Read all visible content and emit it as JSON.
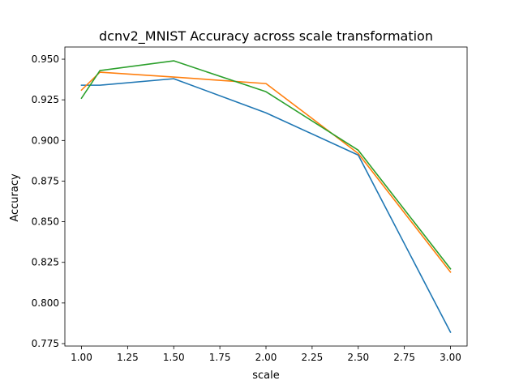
{
  "chart_data": {
    "type": "line",
    "title": "dcnv2_MNIST Accuracy across scale transformation",
    "xlabel": "scale",
    "ylabel": "Accuracy",
    "xlim": [
      0.91,
      3.09
    ],
    "ylim": [
      0.7735,
      0.9575
    ],
    "xticks": [
      1.0,
      1.25,
      1.5,
      1.75,
      2.0,
      2.25,
      2.5,
      2.75,
      3.0
    ],
    "xtick_labels": [
      "1.00",
      "1.25",
      "1.50",
      "1.75",
      "2.00",
      "2.25",
      "2.50",
      "2.75",
      "3.00"
    ],
    "yticks": [
      0.775,
      0.8,
      0.825,
      0.85,
      0.875,
      0.9,
      0.925,
      0.95
    ],
    "ytick_labels": [
      "0.775",
      "0.800",
      "0.825",
      "0.850",
      "0.875",
      "0.900",
      "0.925",
      "0.950"
    ],
    "grid": false,
    "legend": false,
    "x": [
      1.0,
      1.1,
      1.5,
      2.0,
      2.5,
      3.0
    ],
    "series": [
      {
        "color": "#1f77b4",
        "values": [
          0.934,
          0.934,
          0.938,
          0.917,
          0.891,
          0.782
        ]
      },
      {
        "color": "#ff7f0e",
        "values": [
          0.931,
          0.942,
          0.939,
          0.935,
          0.892,
          0.819
        ]
      },
      {
        "color": "#2ca02c",
        "values": [
          0.926,
          0.943,
          0.949,
          0.93,
          0.894,
          0.821
        ]
      }
    ]
  }
}
